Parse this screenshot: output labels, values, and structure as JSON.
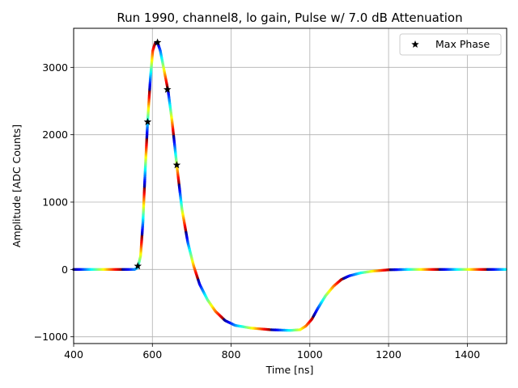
{
  "chart_data": {
    "type": "scatter",
    "title": "Run 1990, channel8, lo gain, Pulse w/ 7.0 dB Attenuation",
    "xlabel": "Time [ns]",
    "ylabel": "Amplitude [ADC Counts]",
    "xlim": [
      400,
      1500
    ],
    "ylim": [
      -1100,
      3580
    ],
    "xticks": [
      400,
      600,
      800,
      1000,
      1200,
      1400
    ],
    "yticks": [
      -1000,
      0,
      1000,
      2000,
      3000
    ],
    "xtick_labels": [
      "400",
      "600",
      "800",
      "1000",
      "1200",
      "1400"
    ],
    "ytick_labels": [
      "−1000",
      "0",
      "1000",
      "2000",
      "3000"
    ],
    "grid": true,
    "legend_position": "top-right",
    "colormap": "jet",
    "waveform": [
      [
        400,
        0
      ],
      [
        555,
        0
      ],
      [
        563,
        30
      ],
      [
        570,
        200
      ],
      [
        576,
        700
      ],
      [
        582,
        1500
      ],
      [
        588,
        2200
      ],
      [
        595,
        2850
      ],
      [
        601,
        3250
      ],
      [
        607,
        3360
      ],
      [
        613,
        3370
      ],
      [
        620,
        3250
      ],
      [
        630,
        2950
      ],
      [
        640,
        2650
      ],
      [
        650,
        2200
      ],
      [
        662,
        1550
      ],
      [
        675,
        900
      ],
      [
        690,
        400
      ],
      [
        705,
        50
      ],
      [
        720,
        -220
      ],
      [
        740,
        -450
      ],
      [
        760,
        -620
      ],
      [
        785,
        -760
      ],
      [
        810,
        -830
      ],
      [
        850,
        -870
      ],
      [
        900,
        -895
      ],
      [
        950,
        -905
      ],
      [
        975,
        -895
      ],
      [
        990,
        -840
      ],
      [
        1005,
        -740
      ],
      [
        1020,
        -580
      ],
      [
        1040,
        -390
      ],
      [
        1060,
        -250
      ],
      [
        1080,
        -150
      ],
      [
        1100,
        -95
      ],
      [
        1130,
        -50
      ],
      [
        1160,
        -25
      ],
      [
        1200,
        -5
      ],
      [
        1250,
        0
      ],
      [
        1500,
        0
      ]
    ],
    "series": [
      {
        "name": "Max Phase",
        "marker": "star",
        "color": "#000000",
        "points": [
          [
            563,
            50
          ],
          [
            588,
            2190
          ],
          [
            613,
            3370
          ],
          [
            638,
            2670
          ],
          [
            662,
            1550
          ]
        ]
      }
    ]
  }
}
